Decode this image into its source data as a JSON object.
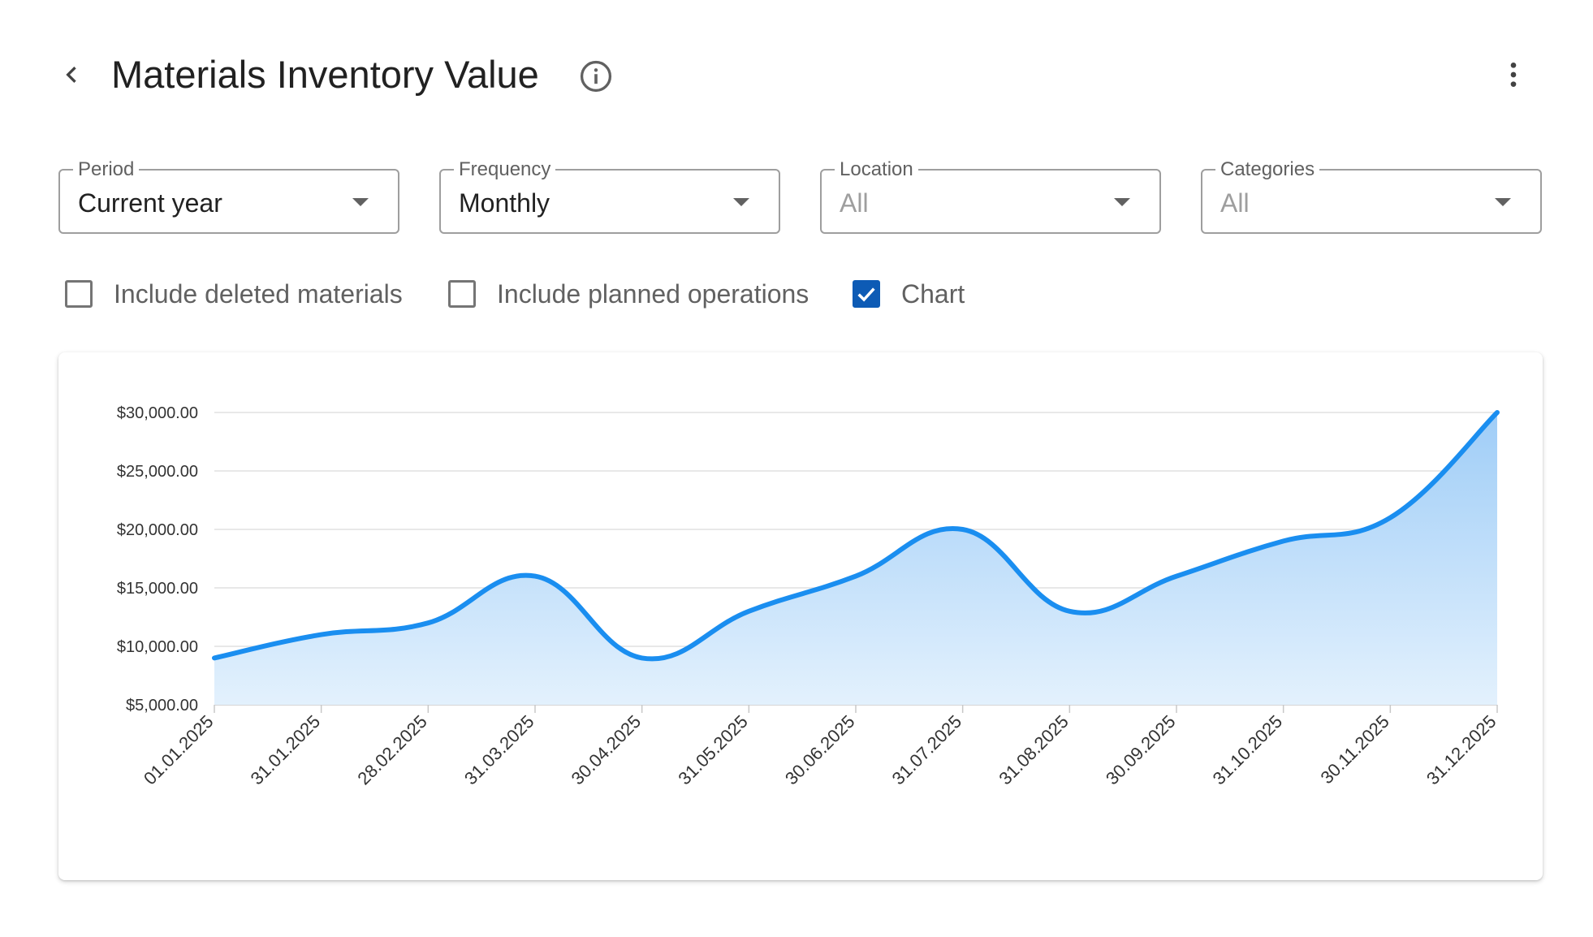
{
  "header": {
    "title": "Materials Inventory Value",
    "back_icon": "chevron-left-icon",
    "info_icon": "info-circle-icon",
    "more_icon": "more-vert-icon"
  },
  "filters": [
    {
      "key": "period",
      "label": "Period",
      "value": "Current year",
      "placeholder": false
    },
    {
      "key": "frequency",
      "label": "Frequency",
      "value": "Monthly",
      "placeholder": false
    },
    {
      "key": "location",
      "label": "Location",
      "value": "All",
      "placeholder": true
    },
    {
      "key": "categories",
      "label": "Categories",
      "value": "All",
      "placeholder": true
    }
  ],
  "checkboxes": [
    {
      "key": "deleted",
      "label": "Include deleted materials",
      "checked": false
    },
    {
      "key": "planned",
      "label": "Include planned operations",
      "checked": false
    },
    {
      "key": "chart",
      "label": "Chart",
      "checked": true
    }
  ],
  "colors": {
    "accent": "#0d5bb5",
    "line": "#1a8ef0",
    "area_top": "#9fcdf7",
    "area_bottom": "#e3f1fd",
    "grid": "#e0e0e0"
  },
  "chart_data": {
    "type": "area",
    "x": [
      "01.01.2025",
      "31.01.2025",
      "28.02.2025",
      "31.03.2025",
      "30.04.2025",
      "31.05.2025",
      "30.06.2025",
      "31.07.2025",
      "31.08.2025",
      "30.09.2025",
      "31.10.2025",
      "30.11.2025",
      "31.12.2025"
    ],
    "series": [
      {
        "values": [
          9000,
          11000,
          12000,
          16000,
          9000,
          13000,
          16000,
          20000,
          13000,
          16000,
          19000,
          21000,
          30000
        ]
      }
    ],
    "y_ticks": [
      "$5,000.00",
      "$10,000.00",
      "$15,000.00",
      "$20,000.00",
      "$25,000.00",
      "$30,000.00"
    ],
    "ylim": [
      5000,
      30000
    ],
    "grid": true,
    "legend": "none"
  }
}
